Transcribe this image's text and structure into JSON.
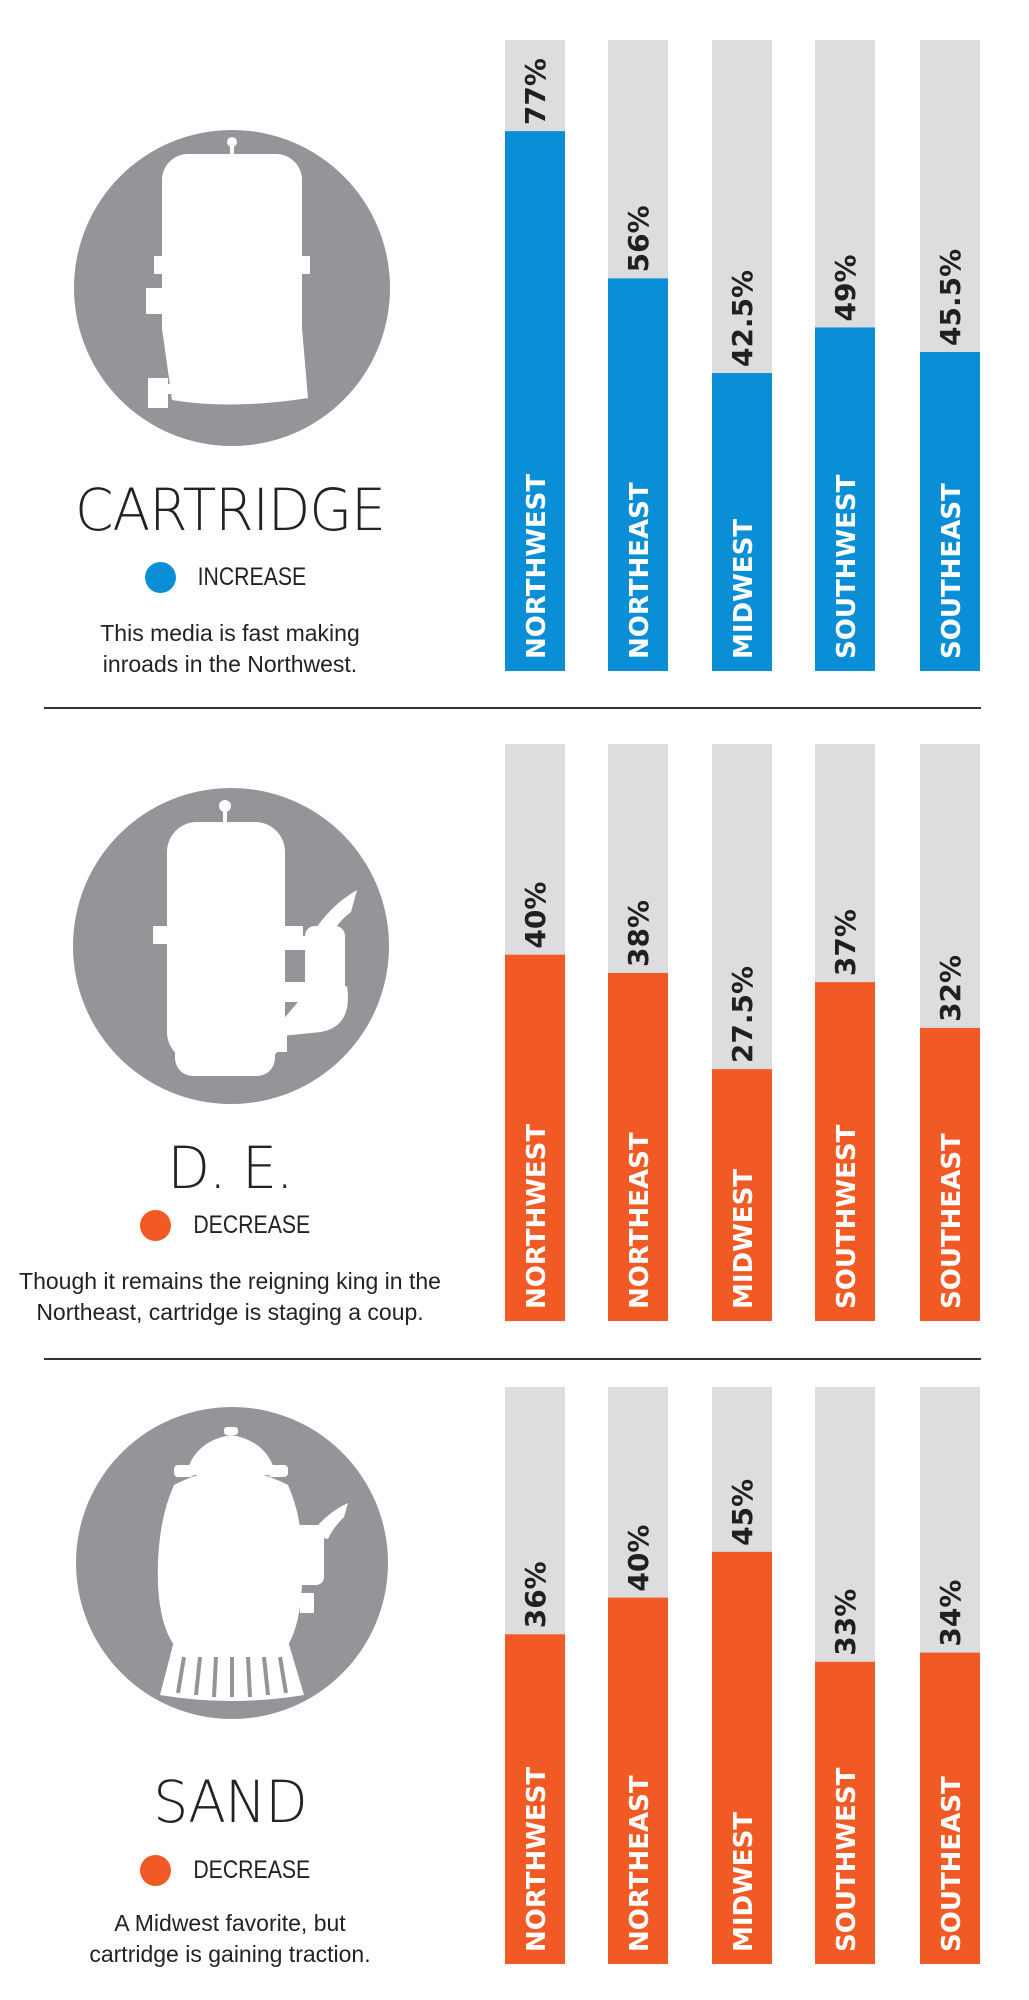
{
  "colors": {
    "increase": "#0a8fd6",
    "decrease": "#f15a24",
    "track": "#dcddde",
    "icon_circle": "#939598",
    "value_text": "#231f20"
  },
  "chart_data": [
    {
      "type": "bar",
      "orientation": "vertical",
      "title": "CARTRIDGE",
      "legend": "INCREASE",
      "trend": "increase",
      "icon": "cartridge-filter-icon",
      "description": [
        "This media is fast making",
        "inroads in the Northwest."
      ],
      "categories": [
        "NORTHWEST",
        "NORTHEAST",
        "MIDWEST",
        "SOUTHWEST",
        "SOUTHEAST"
      ],
      "values": [
        77,
        56,
        42.5,
        49,
        45.5
      ],
      "labels": [
        "77%",
        "56%",
        "42.5%",
        "49%",
        "45.5%"
      ],
      "ylim": [
        0,
        90
      ]
    },
    {
      "type": "bar",
      "orientation": "vertical",
      "title": "D. E.",
      "legend": "DECREASE",
      "trend": "decrease",
      "icon": "de-filter-icon",
      "description": [
        "Though it remains the reigning king in the",
        "Northeast, cartridge is staging a coup."
      ],
      "categories": [
        "NORTHWEST",
        "NORTHEAST",
        "MIDWEST",
        "SOUTHWEST",
        "SOUTHEAST"
      ],
      "values": [
        40,
        38,
        27.5,
        37,
        32
      ],
      "labels": [
        "40%",
        "38%",
        "27.5%",
        "37%",
        "32%"
      ],
      "ylim": [
        0,
        63
      ]
    },
    {
      "type": "bar",
      "orientation": "vertical",
      "title": "SAND",
      "legend": "DECREASE",
      "trend": "decrease",
      "icon": "sand-filter-icon",
      "description": [
        "A Midwest favorite, but",
        "cartridge is gaining traction."
      ],
      "categories": [
        "NORTHWEST",
        "NORTHEAST",
        "MIDWEST",
        "SOUTHWEST",
        "SOUTHEAST"
      ],
      "values": [
        36,
        40,
        45,
        33,
        34
      ],
      "labels": [
        "36%",
        "40%",
        "45%",
        "33%",
        "34%"
      ],
      "ylim": [
        0,
        63
      ]
    }
  ]
}
